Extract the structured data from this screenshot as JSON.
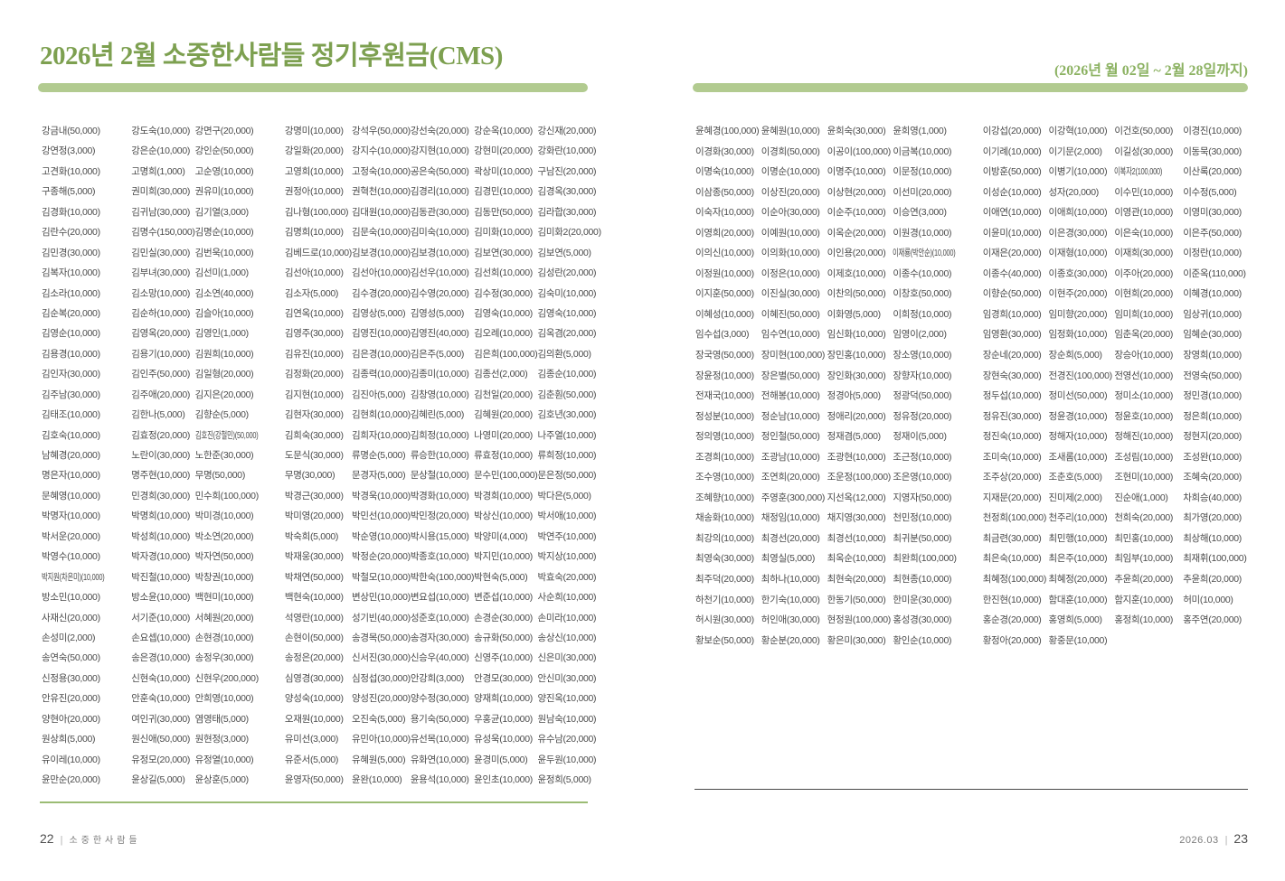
{
  "header": {
    "title": "2026년 2월 소중한사람들 정기후원금(CMS)",
    "period": "(2026년 월 02일 ~ 2월 28일까지)"
  },
  "colors": {
    "title_green": "#7da050",
    "bar_green": "#b2cb90",
    "rule_green": "#9bbc74",
    "rule_dark": "#4a4a4a",
    "donor_text": "#4b4b4b"
  },
  "left_page": {
    "entries": [
      "강금내(50,000)",
      "강도숙(10,000)",
      "강면구(20,000)",
      "강명미(10,000)",
      "강석우(50,000)",
      "강선숙(20,000)",
      "강순옥(10,000)",
      "강신재(20,000)",
      "강연정(3,000)",
      "강은순(10,000)",
      "강인순(50,000)",
      "강일화(20,000)",
      "강지수(10,000)",
      "강지현(10,000)",
      "강현미(20,000)",
      "강화란(10,000)",
      "고견화(10,000)",
      "고명희(1,000)",
      "고순영(10,000)",
      "고영희(10,000)",
      "고정숙(10,000)",
      "공은숙(50,000)",
      "곽상미(10,000)",
      "구남진(20,000)",
      "구종해(5,000)",
      "권미희(30,000)",
      "권유미(10,000)",
      "권정아(10,000)",
      "권혁천(10,000)",
      "김경리(10,000)",
      "김경민(10,000)",
      "김경옥(30,000)",
      "김경화(10,000)",
      "김귀남(30,000)",
      "김기열(3,000)",
      "김나형(100,000)",
      "김대원(10,000)",
      "김동관(30,000)",
      "김동만(50,000)",
      "김라합(30,000)",
      "김란수(20,000)",
      "김명수(150,000)",
      "김명순(10,000)",
      "김명희(10,000)",
      "김문숙(10,000)",
      "김미숙(10,000)",
      "김미화(10,000)",
      "김미화2(20,000)",
      "김민경(30,000)",
      "김민실(30,000)",
      "김번욱(10,000)",
      "김베드로(10,000)",
      "김보경(10,000)",
      "김보경(10,000)",
      "김보연(30,000)",
      "김보연(5,000)",
      "김복자(10,000)",
      "김부녀(30,000)",
      "김선미(1,000)",
      "김선아(10,000)",
      "김선아(10,000)",
      "김선우(10,000)",
      "김선희(10,000)",
      "김성란(20,000)",
      "김소라(10,000)",
      "김소망(10,000)",
      "김소연(40,000)",
      "김소자(5,000)",
      "김수경(20,000)",
      "김수영(20,000)",
      "김수정(30,000)",
      "김숙미(10,000)",
      "김순복(20,000)",
      "김순하(10,000)",
      "김슬아(10,000)",
      "김연옥(10,000)",
      "김영상(5,000)",
      "김영성(5,000)",
      "김영숙(10,000)",
      "김영숙(10,000)",
      "김영순(10,000)",
      "김영옥(20,000)",
      "김영인(1,000)",
      "김영주(30,000)",
      "김영진(10,000)",
      "김영진(40,000)",
      "김오례(10,000)",
      "김옥겸(20,000)",
      "김용경(10,000)",
      "김용기(10,000)",
      "김원희(10,000)",
      "김유진(10,000)",
      "김은경(10,000)",
      "김은주(5,000)",
      "김은희(100,000)",
      "김의환(5,000)",
      "김인자(30,000)",
      "김인주(50,000)",
      "김일형(20,000)",
      "김정화(20,000)",
      "김종력(10,000)",
      "김종미(10,000)",
      "김종선(2,000)",
      "김종순(10,000)",
      "김주남(30,000)",
      "김주애(20,000)",
      "김지은(20,000)",
      "김지현(10,000)",
      "김진아(5,000)",
      "김창영(10,000)",
      "김천일(20,000)",
      "김춘훤(50,000)",
      "김태조(10,000)",
      "김한나(5,000)",
      "김향순(5,000)",
      "김현자(30,000)",
      "김현희(10,000)",
      "김혜린(5,000)",
      "김혜원(20,000)",
      "김호년(30,000)",
      "김호숙(10,000)",
      "김효정(20,000)",
      "김호진(강철민)(50,000)",
      "김희숙(30,000)",
      "김희자(10,000)",
      "김희정(10,000)",
      "나영미(20,000)",
      "나주열(10,000)",
      "남혜경(20,000)",
      "노란이(30,000)",
      "노한준(30,000)",
      "도문식(30,000)",
      "류명순(5,000)",
      "류승한(10,000)",
      "류효정(10,000)",
      "류희정(10,000)",
      "명은자(10,000)",
      "명주현(10,000)",
      "무명(50,000)",
      "무명(30,000)",
      "문경자(5,000)",
      "문상철(10,000)",
      "문수민(100,000)",
      "문은정(50,000)",
      "문혜영(10,000)",
      "민경희(30,000)",
      "민수희(100,000)",
      "박경근(30,000)",
      "박경욱(10,000)",
      "박경화(10,000)",
      "박경희(10,000)",
      "박다은(5,000)",
      "박명자(10,000)",
      "박명희(10,000)",
      "박미경(10,000)",
      "박미영(20,000)",
      "박민선(10,000)",
      "박민정(20,000)",
      "박상신(10,000)",
      "박서애(10,000)",
      "박서운(20,000)",
      "박성희(10,000)",
      "박소연(20,000)",
      "박숙희(5,000)",
      "박순영(10,000)",
      "박시용(15,000)",
      "박양미(4,000)",
      "박연주(10,000)",
      "박영수(10,000)",
      "박자경(10,000)",
      "박자연(50,000)",
      "박재웅(30,000)",
      "박정순(20,000)",
      "박종호(10,000)",
      "박지민(10,000)",
      "박지상(10,000)",
      "박지원(차은미)(10,000)",
      "박진철(10,000)",
      "박창권(10,000)",
      "박채연(50,000)",
      "박철모(10,000)",
      "박한숙(100,000)",
      "박현숙(5,000)",
      "박효숙(20,000)",
      "방소민(10,000)",
      "방소윤(10,000)",
      "백현미(10,000)",
      "백현숙(10,000)",
      "변상민(10,000)",
      "변요섭(10,000)",
      "변준섭(10,000)",
      "사순희(10,000)",
      "사재신(20,000)",
      "서기준(10,000)",
      "서혜원(20,000)",
      "석영란(10,000)",
      "성기빈(40,000)",
      "성준호(10,000)",
      "손경순(30,000)",
      "손미라(10,000)",
      "손성미(2,000)",
      "손요셉(10,000)",
      "손현경(10,000)",
      "손현이(50,000)",
      "송경목(50,000)",
      "송경자(30,000)",
      "송규화(50,000)",
      "송상신(10,000)",
      "송연숙(50,000)",
      "송은경(10,000)",
      "송정우(30,000)",
      "송정은(20,000)",
      "신서진(30,000)",
      "신승우(40,000)",
      "신영주(10,000)",
      "신은미(30,000)",
      "신정용(30,000)",
      "신현숙(10,000)",
      "신현우(200,000)",
      "심영경(30,000)",
      "심정섭(30,000)",
      "안강희(3,000)",
      "안경모(30,000)",
      "안신미(30,000)",
      "안유진(20,000)",
      "안훈숙(10,000)",
      "안희영(10,000)",
      "양성숙(10,000)",
      "양성진(20,000)",
      "양수정(30,000)",
      "양재희(10,000)",
      "양진옥(10,000)",
      "양현아(20,000)",
      "여인귀(30,000)",
      "염영태(5,000)",
      "오재원(10,000)",
      "오진숙(5,000)",
      "용기숙(50,000)",
      "우홍균(10,000)",
      "원남숙(10,000)",
      "원상희(5,000)",
      "원신애(50,000)",
      "원현정(3,000)",
      "유미선(3,000)",
      "유민아(10,000)",
      "유선목(10,000)",
      "유성욱(10,000)",
      "유수남(20,000)",
      "유이레(10,000)",
      "유정모(20,000)",
      "유정열(10,000)",
      "유준서(5,000)",
      "유혜원(5,000)",
      "유화연(10,000)",
      "윤경미(5,000)",
      "윤두원(10,000)",
      "윤만순(20,000)",
      "윤상길(5,000)",
      "윤상훈(5,000)",
      "윤영자(50,000)",
      "윤완(10,000)",
      "윤용석(10,000)",
      "윤인초(10,000)",
      "윤정희(5,000)"
    ]
  },
  "right_page": {
    "entries": [
      "윤혜경(100,000)",
      "윤혜원(10,000)",
      "윤희숙(30,000)",
      "윤희영(1,000)",
      "이강섭(20,000)",
      "이강혁(10,000)",
      "이건호(50,000)",
      "이경진(10,000)",
      "이경화(30,000)",
      "이경희(50,000)",
      "이공이(100,000)",
      "이금복(10,000)",
      "이기례(10,000)",
      "이기문(2,000)",
      "이길성(30,000)",
      "이동묵(30,000)",
      "이명숙(10,000)",
      "이명순(10,000)",
      "이명주(10,000)",
      "이문정(10,000)",
      "이방훈(50,000)",
      "이병기(10,000)",
      "이복자2(100,000)",
      "이산록(20,000)",
      "이삼종(50,000)",
      "이상진(20,000)",
      "이상현(20,000)",
      "이선미(20,000)",
      "이성순(10,000)",
      "성자(20,000)",
      "이수민(10,000)",
      "이수정(5,000)",
      "이숙자(10,000)",
      "이순아(30,000)",
      "이순주(10,000)",
      "이승연(3,000)",
      "이애연(10,000)",
      "이애희(10,000)",
      "이영관(10,000)",
      "이영미(30,000)",
      "이영희(20,000)",
      "이예원(10,000)",
      "이옥순(20,000)",
      "이원경(10,000)",
      "이윤미(10,000)",
      "이은경(30,000)",
      "이은숙(10,000)",
      "이은주(50,000)",
      "이의신(10,000)",
      "이의화(10,000)",
      "이인용(20,000)",
      "이재룡(박안순)(10,000)",
      "이재은(20,000)",
      "이재형(10,000)",
      "이재희(30,000)",
      "이정란(10,000)",
      "이정원(10,000)",
      "이정은(10,000)",
      "이제호(10,000)",
      "이종수(10,000)",
      "이종수(40,000)",
      "이종호(30,000)",
      "이주아(20,000)",
      "이준옥(110,000)",
      "이지훈(50,000)",
      "이진실(30,000)",
      "이찬의(50,000)",
      "이창호(50,000)",
      "이향순(50,000)",
      "이현주(20,000)",
      "이현희(20,000)",
      "이혜경(10,000)",
      "이혜성(10,000)",
      "이혜진(50,000)",
      "이화영(5,000)",
      "이희정(10,000)",
      "임경희(10,000)",
      "임미향(20,000)",
      "임미희(10,000)",
      "임상귀(10,000)",
      "임수섭(3,000)",
      "임수연(10,000)",
      "임신화(10,000)",
      "임영이(2,000)",
      "임영환(30,000)",
      "임정화(10,000)",
      "임춘옥(20,000)",
      "임혜순(30,000)",
      "장국영(50,000)",
      "장미현(100,000)",
      "장민홍(10,000)",
      "장소영(10,000)",
      "장순네(20,000)",
      "장순희(5,000)",
      "장승아(10,000)",
      "장영희(10,000)",
      "장윤정(10,000)",
      "장은별(50,000)",
      "장인화(30,000)",
      "장향자(10,000)",
      "장현숙(30,000)",
      "전경진(100,000)",
      "전영선(10,000)",
      "전영숙(50,000)",
      "전재국(10,000)",
      "전해봉(10,000)",
      "정경아(5,000)",
      "정광덕(50,000)",
      "정두섭(10,000)",
      "정미선(50,000)",
      "정미소(10,000)",
      "정민경(10,000)",
      "정성분(10,000)",
      "정순남(10,000)",
      "정애리(20,000)",
      "정유정(20,000)",
      "정유진(30,000)",
      "정윤경(10,000)",
      "정윤호(10,000)",
      "정은희(10,000)",
      "정의영(10,000)",
      "정인철(50,000)",
      "정재겸(5,000)",
      "정재이(5,000)",
      "정진숙(10,000)",
      "정해자(10,000)",
      "정해진(10,000)",
      "정현지(20,000)",
      "조경희(10,000)",
      "조광남(10,000)",
      "조광현(10,000)",
      "조근정(10,000)",
      "조미숙(10,000)",
      "조새롬(10,000)",
      "조성림(10,000)",
      "조성완(10,000)",
      "조수영(10,000)",
      "조연희(20,000)",
      "조운정(100,000)",
      "조은영(10,000)",
      "조주상(20,000)",
      "조춘호(5,000)",
      "조현미(10,000)",
      "조혜숙(20,000)",
      "조혜향(10,000)",
      "주영훈(300,000)",
      "지선옥(12,000)",
      "지영자(50,000)",
      "지재문(20,000)",
      "진미제(2,000)",
      "진순애(1,000)",
      "차희승(40,000)",
      "채송화(10,000)",
      "채정임(10,000)",
      "채지영(30,000)",
      "천민정(10,000)",
      "천정희(100,000)",
      "천주리(10,000)",
      "천희숙(20,000)",
      "최가영(20,000)",
      "최강의(10,000)",
      "최경선(20,000)",
      "최경선(10,000)",
      "최귀분(50,000)",
      "최금련(30,000)",
      "최민행(10,000)",
      "최민홍(10,000)",
      "최상해(10,000)",
      "최영숙(30,000)",
      "최영실(5,000)",
      "최옥순(10,000)",
      "최완희(100,000)",
      "최은숙(10,000)",
      "최은주(10,000)",
      "최임부(10,000)",
      "최재휘(100,000)",
      "최주덕(20,000)",
      "최하나(10,000)",
      "최현숙(20,000)",
      "최현종(10,000)",
      "최혜정(100,000)",
      "최혜정(20,000)",
      "추윤희(20,000)",
      "추윤희(20,000)",
      "하천기(10,000)",
      "한기숙(10,000)",
      "한동기(50,000)",
      "한미운(30,000)",
      "한진현(10,000)",
      "함대훈(10,000)",
      "함지훈(10,000)",
      "허미(10,000)",
      "허시원(30,000)",
      "허인애(30,000)",
      "현정원(100,000)",
      "홍성경(30,000)",
      "홍순경(20,000)",
      "홍영희(5,000)",
      "홍정희(10,000)",
      "홍주연(20,000)",
      "황보순(50,000)",
      "황순분(20,000)",
      "황은미(30,000)",
      "황인순(10,000)",
      "황정아(20,000)",
      "황중문(10,000)"
    ]
  },
  "footer": {
    "left_page_number": "22",
    "left_label": "소중한사람들",
    "divider": "|",
    "right_issue_date": "2026.03",
    "right_page_number": "23"
  }
}
